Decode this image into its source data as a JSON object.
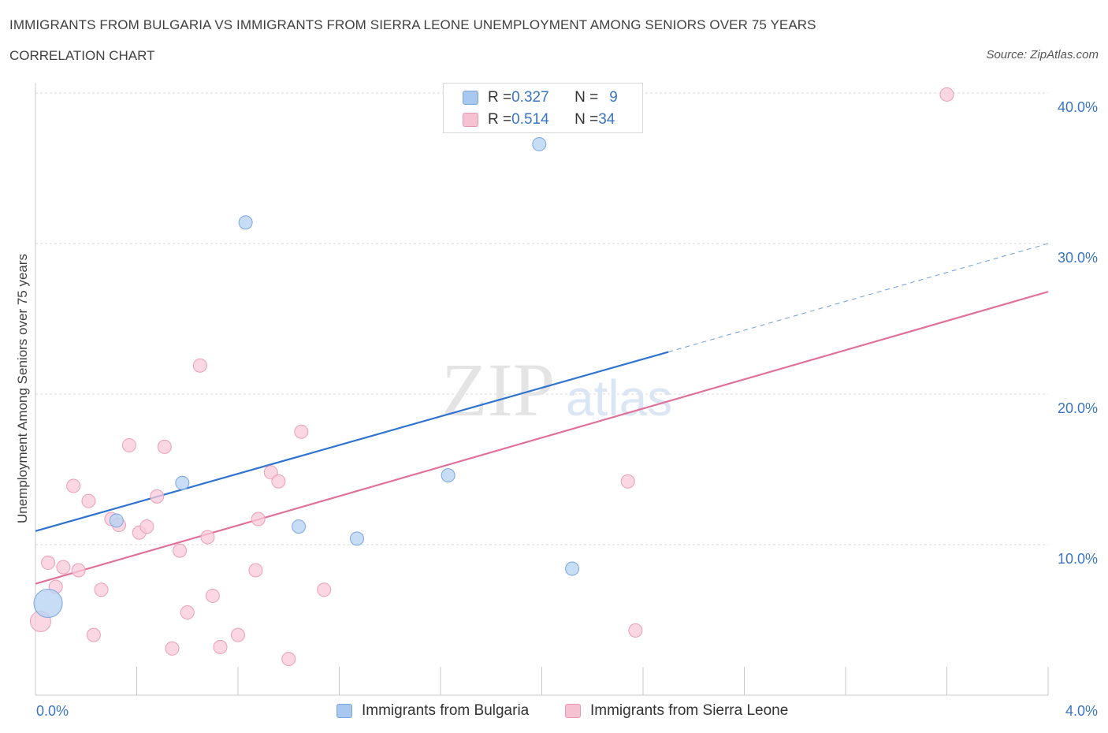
{
  "title": "IMMIGRANTS FROM BULGARIA VS IMMIGRANTS FROM SIERRA LEONE UNEMPLOYMENT AMONG SENIORS OVER 75 YEARS",
  "subtitle": "CORRELATION CHART",
  "source": "Source: ZipAtlas.com",
  "watermark": {
    "zip": "ZIP",
    "atlas": "atlas"
  },
  "legend": {
    "rows": [
      {
        "r_label": "R = ",
        "r_value": "0.327",
        "n_label": "N = ",
        "n_value": "9",
        "color": "#a9c8f0",
        "border": "#7aa6e0"
      },
      {
        "r_label": "R = ",
        "r_value": "0.514",
        "n_label": "N = ",
        "n_value": "34",
        "color": "#f6c2d2",
        "border": "#e897b2"
      }
    ]
  },
  "colors": {
    "bulgaria_fill": "#b9d3f3",
    "bulgaria_stroke": "#7aa6e0",
    "bulgaria_line": "#2f73d0",
    "sierra_fill": "#f8c9d8",
    "sierra_stroke": "#ea9fb8",
    "sierra_line": "#e0709a",
    "tick_label": "#3a74c4",
    "grid": "#d9d9d9"
  },
  "chart_data": {
    "type": "scatter",
    "xlabel": "",
    "ylabel": "Unemployment Among Seniors over 75 years",
    "xlim": [
      0,
      4.0
    ],
    "ylim": [
      0,
      40.0
    ],
    "x_tick_labels": [
      "0.0%",
      "4.0%"
    ],
    "y_ticks": [
      10,
      20,
      30,
      40
    ],
    "y_tick_labels": [
      "10.0%",
      "20.0%",
      "30.0%",
      "40.0%"
    ],
    "grid": true,
    "legend_position": "top-center",
    "series": [
      {
        "name": "Immigrants from Bulgaria",
        "points": [
          {
            "x": 0.05,
            "y": 6.1,
            "big": true
          },
          {
            "x": 0.32,
            "y": 11.6
          },
          {
            "x": 0.58,
            "y": 14.1
          },
          {
            "x": 0.83,
            "y": 31.4
          },
          {
            "x": 1.04,
            "y": 11.2
          },
          {
            "x": 1.27,
            "y": 10.4
          },
          {
            "x": 1.63,
            "y": 14.6
          },
          {
            "x": 1.99,
            "y": 36.6
          },
          {
            "x": 2.12,
            "y": 8.4
          }
        ],
        "trend": {
          "x0": 0.0,
          "y0": 10.9,
          "x1": 2.5,
          "y1": 22.8,
          "dash_x1": 4.0,
          "dash_y1": 30.0
        }
      },
      {
        "name": "Immigrants from Sierra Leone",
        "points": [
          {
            "x": 0.02,
            "y": 4.9,
            "big": true
          },
          {
            "x": 0.05,
            "y": 8.8
          },
          {
            "x": 0.08,
            "y": 7.2
          },
          {
            "x": 0.11,
            "y": 8.5
          },
          {
            "x": 0.15,
            "y": 13.9
          },
          {
            "x": 0.17,
            "y": 8.3
          },
          {
            "x": 0.21,
            "y": 12.9
          },
          {
            "x": 0.23,
            "y": 4.0
          },
          {
            "x": 0.26,
            "y": 7.0
          },
          {
            "x": 0.3,
            "y": 11.7
          },
          {
            "x": 0.33,
            "y": 11.3
          },
          {
            "x": 0.37,
            "y": 16.6
          },
          {
            "x": 0.41,
            "y": 10.8
          },
          {
            "x": 0.44,
            "y": 11.2
          },
          {
            "x": 0.48,
            "y": 13.2
          },
          {
            "x": 0.51,
            "y": 16.5
          },
          {
            "x": 0.54,
            "y": 3.1
          },
          {
            "x": 0.57,
            "y": 9.6
          },
          {
            "x": 0.6,
            "y": 5.5
          },
          {
            "x": 0.65,
            "y": 21.9
          },
          {
            "x": 0.68,
            "y": 10.5
          },
          {
            "x": 0.7,
            "y": 6.6
          },
          {
            "x": 0.73,
            "y": 3.2
          },
          {
            "x": 0.8,
            "y": 4.0
          },
          {
            "x": 0.87,
            "y": 8.3
          },
          {
            "x": 0.88,
            "y": 11.7
          },
          {
            "x": 0.93,
            "y": 14.8
          },
          {
            "x": 0.96,
            "y": 14.2
          },
          {
            "x": 1.0,
            "y": 2.4
          },
          {
            "x": 1.05,
            "y": 17.5
          },
          {
            "x": 1.14,
            "y": 7.0
          },
          {
            "x": 2.34,
            "y": 14.2
          },
          {
            "x": 2.37,
            "y": 4.3
          },
          {
            "x": 3.6,
            "y": 39.9
          }
        ],
        "trend": {
          "x0": 0.0,
          "y0": 7.4,
          "x1": 4.0,
          "y1": 26.8
        }
      }
    ]
  }
}
